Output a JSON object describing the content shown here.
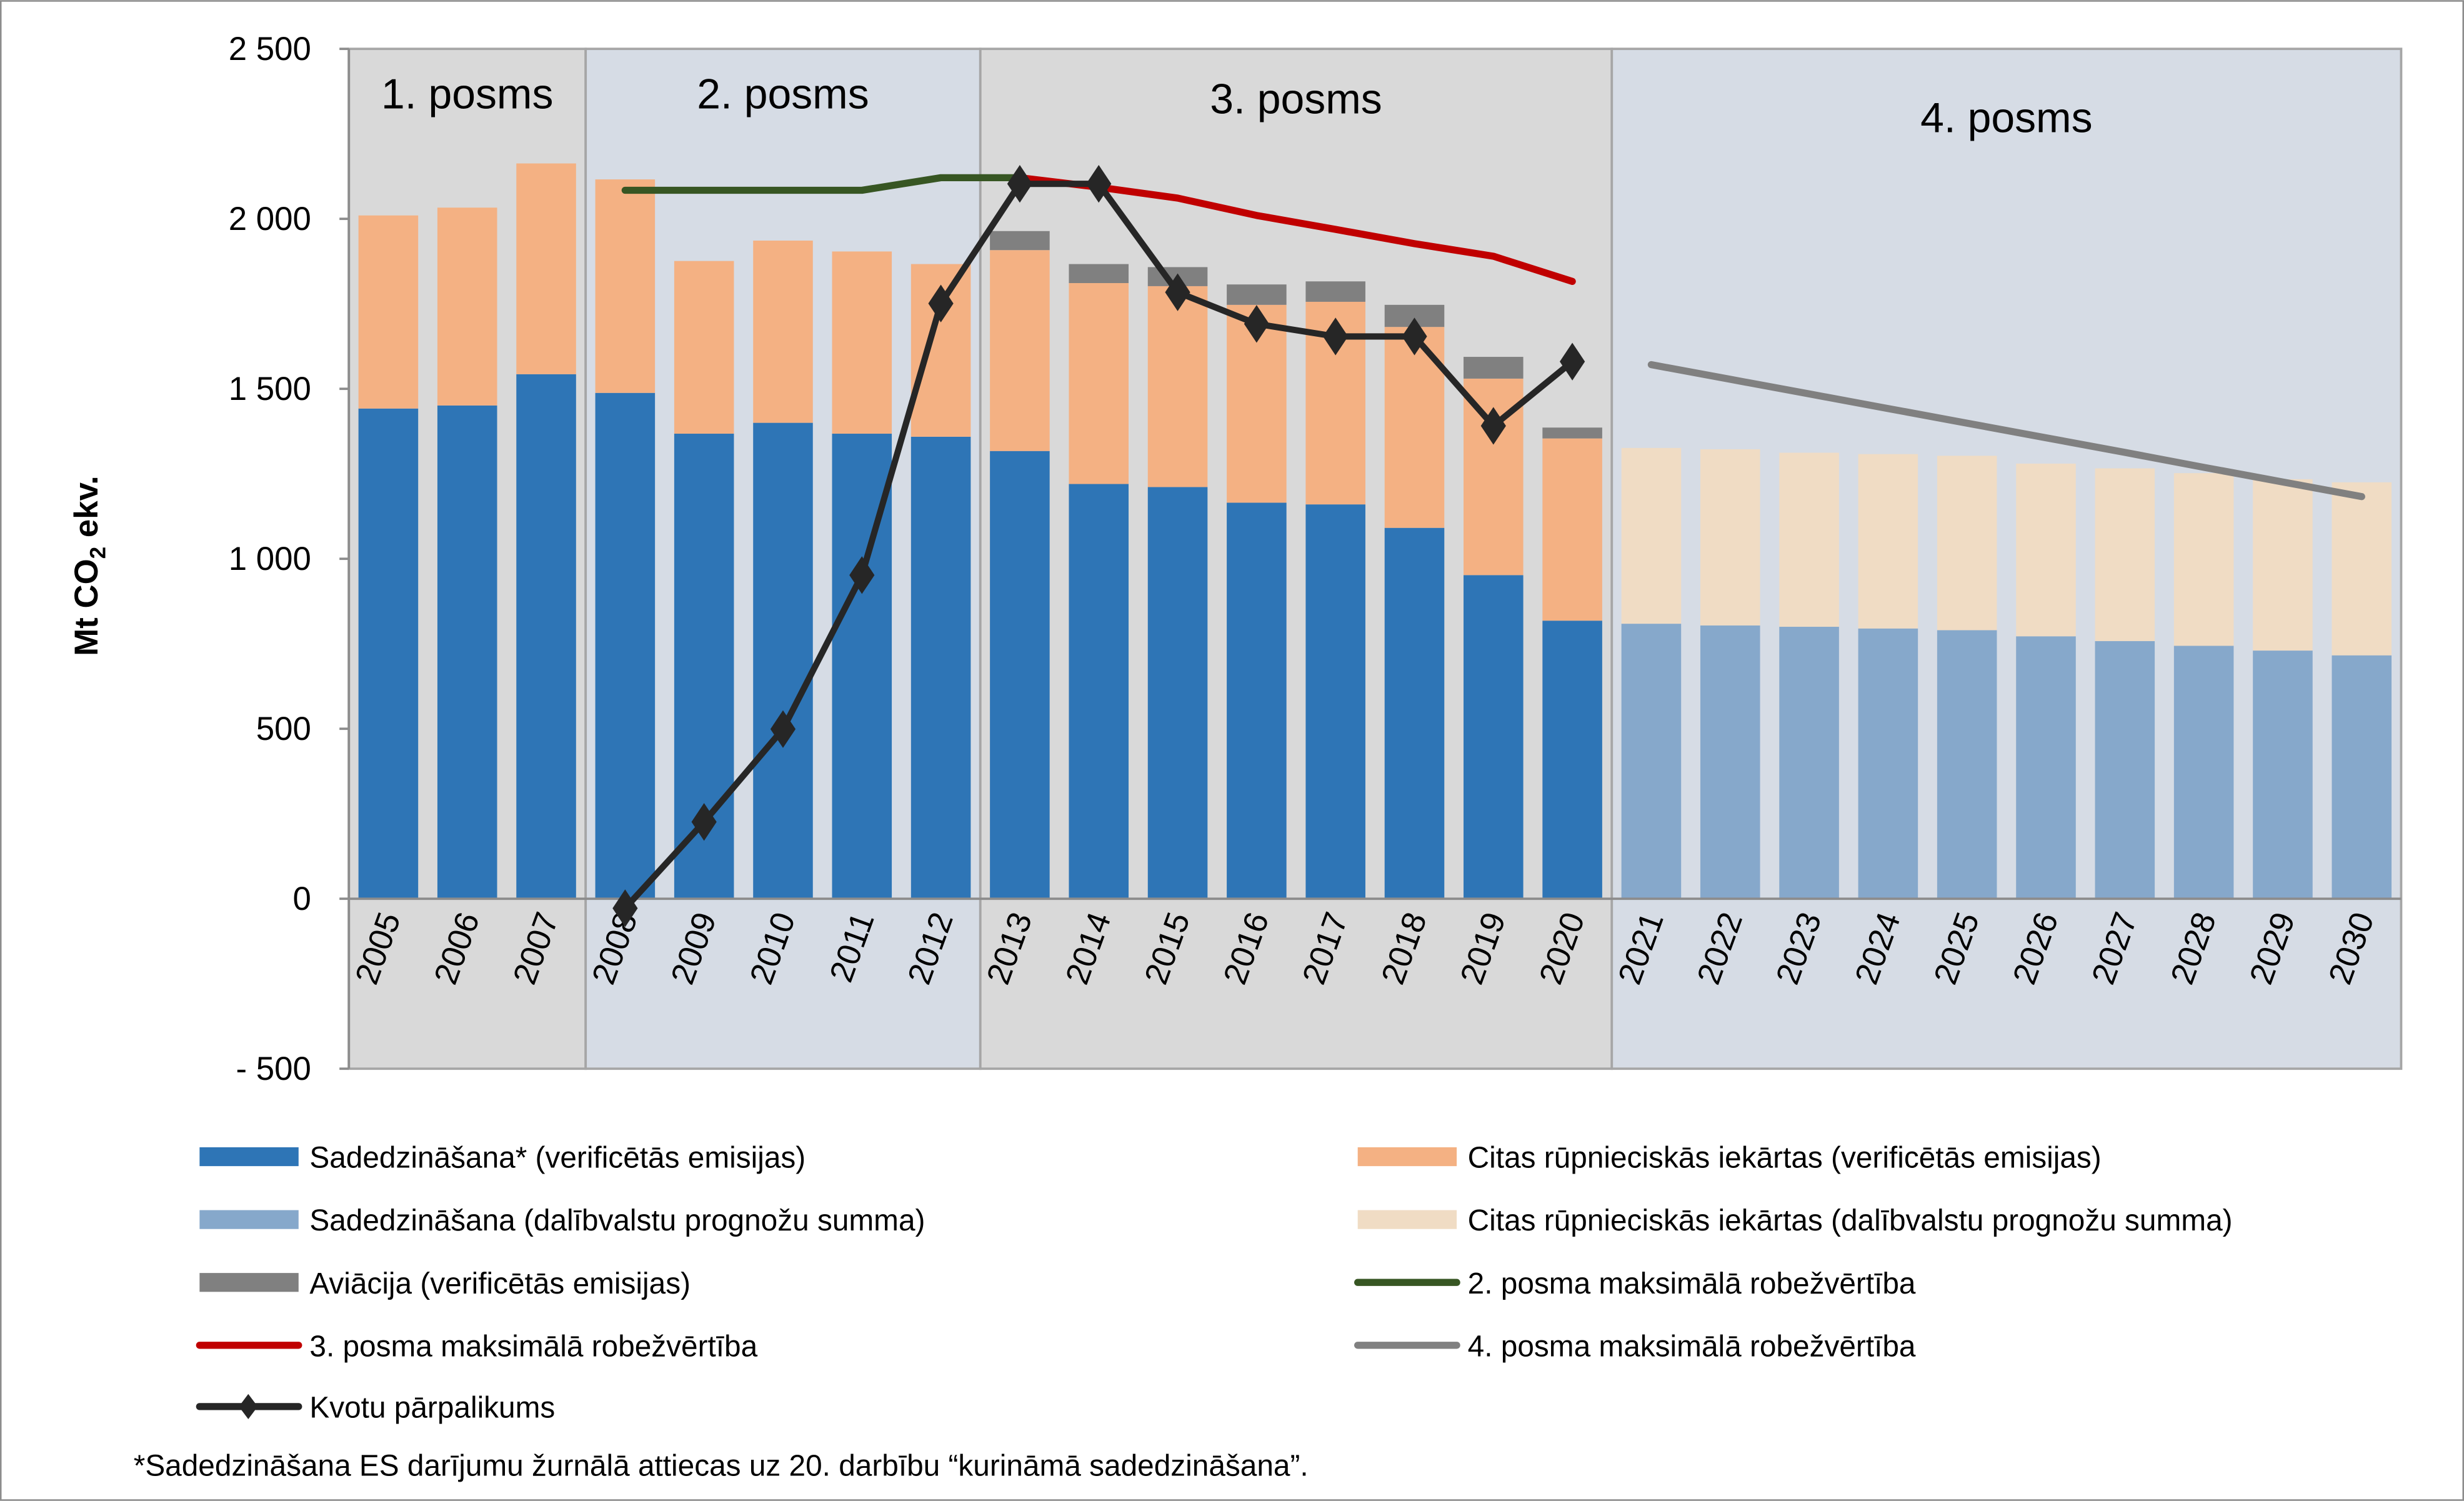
{
  "chart_data": {
    "type": "bar",
    "stacked": true,
    "title": "",
    "xlabel": "",
    "ylabel": "Mt CO2 ekv.",
    "ylim": [
      -500,
      2500
    ],
    "yticks": [
      -500,
      0,
      500,
      1000,
      1500,
      2000,
      2500
    ],
    "ytick_labels": [
      "- 500",
      "0",
      "500",
      "1 000",
      "1 500",
      "2 000",
      "2 500"
    ],
    "grid": false,
    "legend_position": "bottom",
    "categories": [
      "2005",
      "2006",
      "2007",
      "2008",
      "2009",
      "2010",
      "2011",
      "2012",
      "2013",
      "2014",
      "2015",
      "2016",
      "2017",
      "2018",
      "2019",
      "2020",
      "2021",
      "2022",
      "2023",
      "2024",
      "2025",
      "2026",
      "2027",
      "2028",
      "2029",
      "2030"
    ],
    "phases": [
      {
        "label": "1. posms",
        "from": "2005",
        "to": "2007",
        "color": "#d9d9d9"
      },
      {
        "label": "2. posms",
        "from": "2008",
        "to": "2012",
        "color": "#d6dce5"
      },
      {
        "label": "3. posms",
        "from": "2013",
        "to": "2020",
        "color": "#d9d9d9"
      },
      {
        "label": "4. posms",
        "from": "2021",
        "to": "2030",
        "color": "#d6dce5"
      }
    ],
    "bar_series": [
      {
        "name": "Sadedzināšana* (verificētās emisijas)",
        "color": "#2e75b6",
        "values": [
          1442,
          1451,
          1543,
          1488,
          1368,
          1400,
          1368,
          1359,
          1317,
          1220,
          1211,
          1165,
          1160,
          1091,
          952,
          818,
          null,
          null,
          null,
          null,
          null,
          null,
          null,
          null,
          null,
          null
        ]
      },
      {
        "name": "Citas rūpnieciskās iekārtas (verificētās emisijas)",
        "color": "#f4b183",
        "values": [
          568,
          582,
          620,
          628,
          508,
          536,
          536,
          508,
          591,
          591,
          591,
          582,
          596,
          591,
          578,
          536,
          null,
          null,
          null,
          null,
          null,
          null,
          null,
          null,
          null,
          null
        ]
      },
      {
        "name": "Aviācija (verificētās emisijas)",
        "color": "#808080",
        "values": [
          null,
          null,
          null,
          null,
          null,
          null,
          null,
          null,
          56,
          56,
          56,
          60,
          60,
          65,
          64,
          32,
          null,
          null,
          null,
          null,
          null,
          null,
          null,
          null,
          null,
          null
        ]
      },
      {
        "name": "Sadedzināšana (dalībvalstu prognožu summa)",
        "color": "#86a8cb",
        "values": [
          null,
          null,
          null,
          null,
          null,
          null,
          null,
          null,
          null,
          null,
          null,
          null,
          null,
          null,
          null,
          null,
          809,
          804,
          800,
          795,
          790,
          772,
          758,
          744,
          730,
          716
        ]
      },
      {
        "name": "Citas rūpnieciskās iekārtas (dalībvalstu prognožu summa)",
        "color": "#f0dcc4",
        "values": [
          null,
          null,
          null,
          null,
          null,
          null,
          null,
          null,
          null,
          null,
          null,
          null,
          null,
          null,
          null,
          null,
          517,
          518,
          512,
          513,
          513,
          508,
          508,
          508,
          504,
          509
        ]
      }
    ],
    "line_series": [
      {
        "name": "2. posma maksimālā robežvērtība",
        "color": "#375623",
        "values": [
          null,
          null,
          null,
          2084,
          2084,
          2084,
          2084,
          2121,
          2121,
          null,
          null,
          null,
          null,
          null,
          null,
          null,
          null,
          null,
          null,
          null,
          null,
          null,
          null,
          null,
          null,
          null
        ]
      },
      {
        "name": "3. posma maksimālā robežvērtība",
        "color": "#c00000",
        "values": [
          null,
          null,
          null,
          null,
          null,
          null,
          null,
          null,
          2121,
          2093,
          2061,
          2010,
          1969,
          1927,
          1890,
          1816,
          null,
          null,
          null,
          null,
          null,
          null,
          null,
          null,
          null,
          null
        ]
      },
      {
        "name": "4. posma maksimālā robežvērtība",
        "color": "#808080",
        "values": [
          null,
          null,
          null,
          null,
          null,
          null,
          null,
          null,
          null,
          null,
          null,
          null,
          null,
          null,
          null,
          null,
          1571,
          1528,
          1485,
          1442,
          1399,
          1356,
          1313,
          1269,
          1226,
          1183
        ]
      },
      {
        "name": "Kvotu pārpalikums",
        "color": "#262626",
        "marker": "diamond",
        "values": [
          null,
          null,
          null,
          -28,
          226,
          499,
          952,
          1751,
          2103,
          2103,
          1784,
          1691,
          1654,
          1654,
          1391,
          1580,
          null,
          null,
          null,
          null,
          null,
          null,
          null,
          null,
          null,
          null
        ]
      }
    ],
    "legend": [
      {
        "label": "Sadedzināšana* (verificētās emisijas)",
        "kind": "bar",
        "color": "#2e75b6"
      },
      {
        "label": "Citas rūpnieciskās iekārtas (verificētās emisijas)",
        "kind": "bar",
        "color": "#f4b183"
      },
      {
        "label": "Sadedzināšana (dalībvalstu prognožu summa)",
        "kind": "bar",
        "color": "#86a8cb"
      },
      {
        "label": "Citas rūpnieciskās iekārtas (dalībvalstu prognožu summa)",
        "kind": "bar",
        "color": "#f0dcc4"
      },
      {
        "label": "Aviācija (verificētās emisijas)",
        "kind": "bar",
        "color": "#808080"
      },
      {
        "label": "2. posma maksimālā robežvērtība",
        "kind": "line",
        "color": "#375623"
      },
      {
        "label": "3. posma maksimālā robežvērtība",
        "kind": "line",
        "color": "#c00000"
      },
      {
        "label": "4. posma maksimālā robežvērtība",
        "kind": "line",
        "color": "#808080"
      },
      {
        "label": "Kvotu pārpalikums",
        "kind": "marker-line",
        "color": "#262626"
      }
    ],
    "footnote": "*Sadedzināšana ES darījumu žurnālā attiecas uz 20. darbību “kurināmā sadedzināšana”."
  }
}
